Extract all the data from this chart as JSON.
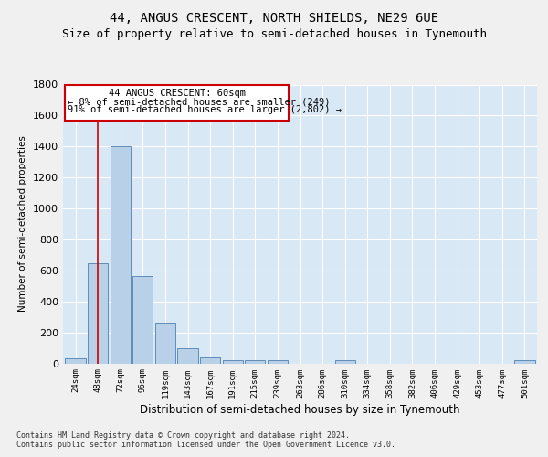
{
  "title_line1": "44, ANGUS CRESCENT, NORTH SHIELDS, NE29 6UE",
  "title_line2": "Size of property relative to semi-detached houses in Tynemouth",
  "xlabel": "Distribution of semi-detached houses by size in Tynemouth",
  "ylabel": "Number of semi-detached properties",
  "footnote": "Contains HM Land Registry data © Crown copyright and database right 2024.\nContains public sector information licensed under the Open Government Licence v3.0.",
  "categories": [
    "24sqm",
    "48sqm",
    "72sqm",
    "96sqm",
    "119sqm",
    "143sqm",
    "167sqm",
    "191sqm",
    "215sqm",
    "239sqm",
    "263sqm",
    "286sqm",
    "310sqm",
    "334sqm",
    "358sqm",
    "382sqm",
    "406sqm",
    "429sqm",
    "453sqm",
    "477sqm",
    "501sqm"
  ],
  "values": [
    30,
    648,
    1400,
    565,
    265,
    100,
    38,
    22,
    18,
    18,
    0,
    0,
    20,
    0,
    0,
    0,
    0,
    0,
    0,
    0,
    18
  ],
  "bar_color": "#b8d0e8",
  "bar_edge_color": "#5080b0",
  "background_color": "#d8e8f5",
  "grid_color": "#ffffff",
  "annotation_box_edge_color": "#cc0000",
  "property_line_color": "#cc0000",
  "property_bar_index": 1,
  "annotation_text_line1": "44 ANGUS CRESCENT: 60sqm",
  "annotation_text_line2": "← 8% of semi-detached houses are smaller (249)",
  "annotation_text_line3": "91% of semi-detached houses are larger (2,802) →",
  "ylim": [
    0,
    1800
  ],
  "yticks": [
    0,
    200,
    400,
    600,
    800,
    1000,
    1200,
    1400,
    1600,
    1800
  ],
  "fig_bg": "#f0f0f0",
  "title1_fontsize": 10,
  "title2_fontsize": 9
}
